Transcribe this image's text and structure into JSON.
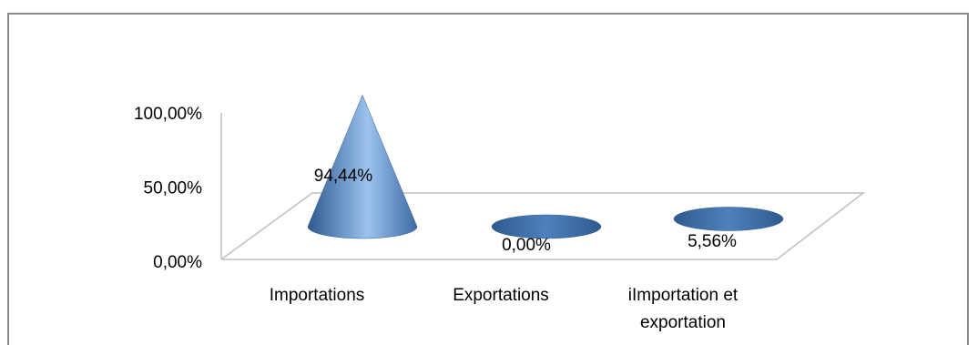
{
  "chart_data": {
    "type": "bar",
    "shape": "cone-3d",
    "categories": [
      "Importations",
      "Exportations",
      "iImportation et exportation"
    ],
    "category_lines": [
      [
        "Importations"
      ],
      [
        "Exportations"
      ],
      [
        "iImportation et",
        "exportation"
      ]
    ],
    "values": [
      94.44,
      0.0,
      5.56
    ],
    "value_labels": [
      "94,44%",
      "0,00%",
      "5,56%"
    ],
    "y_ticks": [
      "0,00%",
      "50,00%",
      "100,00%"
    ],
    "ylim": [
      0,
      100
    ],
    "grid": false,
    "legend": "none",
    "colors": {
      "bar": "#4f81bd",
      "bar_dark": "#2f5a8f",
      "bar_light": "#9cc3ef",
      "axis": "#bfbfbf",
      "frame": "#8c8c8c"
    }
  }
}
